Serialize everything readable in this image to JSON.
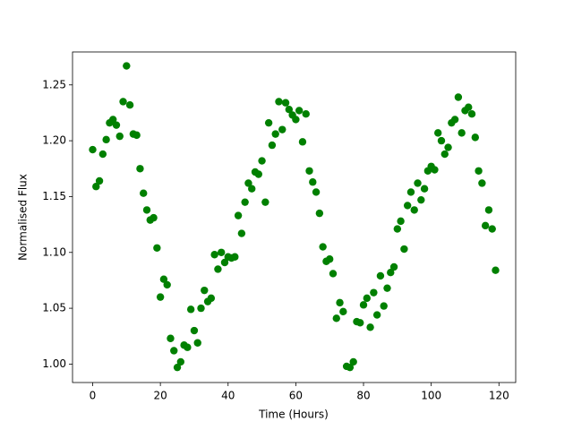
{
  "chart_data": {
    "type": "scatter",
    "xlabel": "Time (Hours)",
    "ylabel": "Normalised Flux",
    "xlim": [
      -5.95,
      124.95
    ],
    "ylim": [
      0.9835,
      1.2795
    ],
    "xticks": [
      0,
      20,
      40,
      60,
      80,
      100,
      120
    ],
    "yticks": [
      {
        "value": 1,
        "label": "1.00"
      },
      1.05,
      {
        "value": 1.1,
        "label": "1.10"
      },
      1.15,
      {
        "value": 1.2,
        "label": "1.20"
      },
      1.25
    ],
    "series": [
      {
        "color": "#008000",
        "x": [
          0,
          1,
          2,
          3,
          4,
          5,
          6,
          7,
          8,
          9,
          10,
          11,
          12,
          13,
          14,
          15,
          16,
          17,
          18,
          19,
          20,
          21,
          22,
          23,
          24,
          25,
          26,
          27,
          28,
          29,
          30,
          31,
          32,
          33,
          34,
          35,
          36,
          37,
          38,
          39,
          40,
          41,
          42,
          43,
          44,
          45,
          46,
          47,
          48,
          49,
          50,
          51,
          52,
          53,
          54,
          55,
          56,
          57,
          58,
          59,
          60,
          61,
          62,
          63,
          64,
          65,
          66,
          67,
          68,
          69,
          70,
          71,
          72,
          73,
          74,
          75,
          76,
          77,
          78,
          79,
          80,
          81,
          82,
          83,
          84,
          85,
          86,
          87,
          88,
          89,
          90,
          91,
          92,
          93,
          94,
          95,
          96,
          97,
          98,
          99,
          100,
          101,
          102,
          103,
          104,
          105,
          106,
          107,
          108,
          109,
          110,
          111,
          112,
          113,
          114,
          115,
          116,
          117,
          118,
          119
        ],
        "values": [
          1.192,
          1.159,
          1.164,
          1.188,
          1.201,
          1.216,
          1.219,
          1.214,
          1.204,
          1.235,
          1.267,
          1.232,
          1.206,
          1.205,
          1.175,
          1.153,
          1.138,
          1.129,
          1.131,
          1.104,
          1.06,
          1.076,
          1.071,
          1.023,
          1.012,
          0.997,
          1.002,
          1.017,
          1.015,
          1.049,
          1.03,
          1.019,
          1.05,
          1.066,
          1.056,
          1.059,
          1.098,
          1.085,
          1.1,
          1.091,
          1.096,
          1.095,
          1.096,
          1.133,
          1.117,
          1.145,
          1.162,
          1.157,
          1.172,
          1.17,
          1.182,
          1.145,
          1.216,
          1.196,
          1.206,
          1.235,
          1.21,
          1.234,
          1.228,
          1.223,
          1.219,
          1.227,
          1.199,
          1.224,
          1.173,
          1.163,
          1.154,
          1.135,
          1.105,
          1.092,
          1.094,
          1.081,
          1.041,
          1.055,
          1.047,
          0.998,
          0.997,
          1.002,
          1.038,
          1.037,
          1.053,
          1.059,
          1.033,
          1.064,
          1.044,
          1.079,
          1.052,
          1.068,
          1.082,
          1.087,
          1.121,
          1.128,
          1.103,
          1.142,
          1.154,
          1.138,
          1.162,
          1.147,
          1.157,
          1.173,
          1.177,
          1.174,
          1.207,
          1.2,
          1.188,
          1.194,
          1.216,
          1.219,
          1.239,
          1.207,
          1.227,
          1.23,
          1.224,
          1.203,
          1.173,
          1.162,
          1.124,
          1.138,
          1.121,
          1.084
        ]
      }
    ]
  }
}
